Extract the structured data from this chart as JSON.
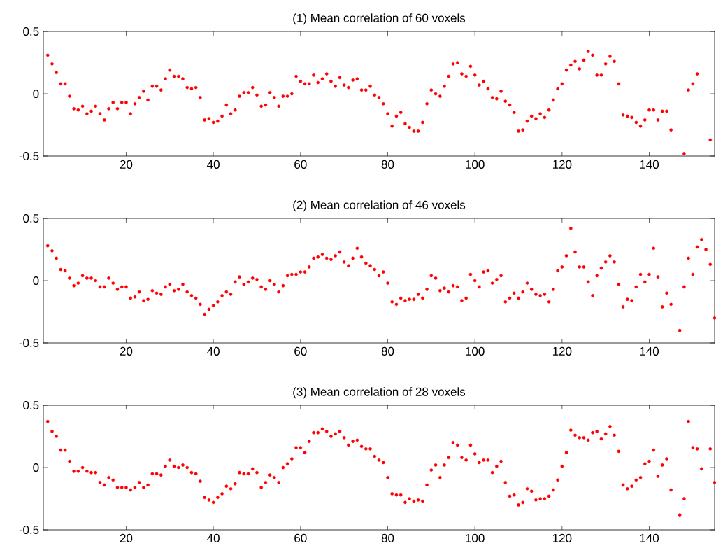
{
  "chart_data": [
    {
      "type": "scatter",
      "title": "(1) Mean correlation of 60 voxels",
      "grid": false,
      "xlim": [
        1,
        155
      ],
      "ylim": [
        -0.5,
        0.5
      ],
      "xticks": [
        20,
        40,
        60,
        80,
        100,
        120,
        140
      ],
      "yticks": [
        -0.5,
        0,
        0.5
      ],
      "x": [
        2,
        3,
        4,
        5,
        6,
        7,
        8,
        9,
        10,
        11,
        12,
        13,
        14,
        15,
        16,
        17,
        18,
        19,
        20,
        21,
        22,
        23,
        24,
        25,
        26,
        27,
        28,
        29,
        30,
        31,
        32,
        33,
        34,
        35,
        36,
        37,
        38,
        39,
        40,
        41,
        42,
        43,
        44,
        45,
        46,
        47,
        48,
        49,
        50,
        51,
        52,
        53,
        54,
        55,
        56,
        57,
        58,
        59,
        60,
        61,
        62,
        63,
        64,
        65,
        66,
        67,
        68,
        69,
        70,
        71,
        72,
        73,
        74,
        75,
        76,
        77,
        78,
        79,
        80,
        81,
        82,
        83,
        84,
        85,
        86,
        87,
        88,
        89,
        90,
        91,
        92,
        93,
        94,
        95,
        96,
        97,
        98,
        99,
        100,
        101,
        102,
        103,
        104,
        105,
        106,
        107,
        108,
        109,
        110,
        111,
        112,
        113,
        114,
        115,
        116,
        117,
        118,
        119,
        120,
        121,
        122,
        123,
        124,
        125,
        126,
        127,
        128,
        129,
        130,
        131,
        132,
        133,
        134,
        135,
        136,
        137,
        138,
        139,
        140,
        141,
        142,
        143,
        144,
        145,
        146,
        147,
        148,
        149,
        150,
        151,
        152,
        153,
        154
      ],
      "series": [
        {
          "color": "#ff0000",
          "values": [
            0.31,
            0.24,
            0.17,
            0.08,
            0.08,
            -0.02,
            -0.12,
            -0.13,
            -0.1,
            -0.16,
            -0.14,
            -0.1,
            -0.16,
            -0.21,
            -0.12,
            -0.07,
            -0.12,
            -0.07,
            -0.07,
            -0.16,
            -0.08,
            -0.03,
            0.02,
            -0.05,
            0.06,
            0.06,
            0.03,
            0.12,
            0.19,
            0.14,
            0.14,
            0.12,
            0.05,
            0.04,
            0.05,
            -0.03,
            -0.21,
            -0.2,
            -0.23,
            -0.22,
            -0.18,
            -0.09,
            -0.16,
            -0.13,
            -0.02,
            0.01,
            0.01,
            0.05,
            -0.01,
            -0.1,
            -0.09,
            0.01,
            -0.03,
            -0.1,
            -0.02,
            -0.02,
            0.0,
            0.14,
            0.1,
            0.08,
            0.08,
            0.15,
            0.09,
            0.12,
            0.16,
            0.1,
            0.06,
            0.13,
            0.07,
            0.05,
            0.11,
            0.12,
            0.03,
            0.03,
            0.06,
            -0.01,
            -0.03,
            -0.08,
            -0.16,
            -0.26,
            -0.18,
            -0.15,
            -0.24,
            -0.27,
            -0.3,
            -0.3,
            -0.23,
            -0.08,
            0.03,
            0.0,
            -0.02,
            0.06,
            0.14,
            0.24,
            0.25,
            0.16,
            0.14,
            0.22,
            0.15,
            0.07,
            0.1,
            0.04,
            -0.03,
            -0.04,
            0.02,
            -0.06,
            -0.09,
            -0.15,
            -0.3,
            -0.29,
            -0.22,
            -0.18,
            -0.2,
            -0.16,
            -0.19,
            -0.13,
            -0.05,
            0.04,
            0.08,
            0.19,
            0.23,
            0.26,
            0.2,
            0.27,
            0.34,
            0.31,
            0.15,
            0.15,
            0.24,
            0.3,
            0.26,
            0.08,
            -0.17,
            -0.18,
            -0.19,
            -0.23,
            -0.26,
            -0.21,
            -0.13,
            -0.13,
            -0.21,
            -0.14,
            -0.14,
            -0.29,
            null,
            null,
            -0.48,
            0.03,
            0.08,
            0.16,
            null,
            null,
            -0.37
          ]
        }
      ]
    },
    {
      "type": "scatter",
      "title": "(2) Mean correlation of 46 voxels",
      "grid": false,
      "xlim": [
        1,
        155
      ],
      "ylim": [
        -0.5,
        0.5
      ],
      "xticks": [
        20,
        40,
        60,
        80,
        100,
        120,
        140
      ],
      "yticks": [
        -0.5,
        0,
        0.5
      ],
      "x": [
        2,
        3,
        4,
        5,
        6,
        7,
        8,
        9,
        10,
        11,
        12,
        13,
        14,
        15,
        16,
        17,
        18,
        19,
        20,
        21,
        22,
        23,
        24,
        25,
        26,
        27,
        28,
        29,
        30,
        31,
        32,
        33,
        34,
        35,
        36,
        37,
        38,
        39,
        40,
        41,
        42,
        43,
        44,
        45,
        46,
        47,
        48,
        49,
        50,
        51,
        52,
        53,
        54,
        55,
        56,
        57,
        58,
        59,
        60,
        61,
        62,
        63,
        64,
        65,
        66,
        67,
        68,
        69,
        70,
        71,
        72,
        73,
        74,
        75,
        76,
        77,
        78,
        79,
        80,
        81,
        82,
        83,
        84,
        85,
        86,
        87,
        88,
        89,
        90,
        91,
        92,
        93,
        94,
        95,
        96,
        97,
        98,
        99,
        100,
        101,
        102,
        103,
        104,
        105,
        106,
        107,
        108,
        109,
        110,
        111,
        112,
        113,
        114,
        115,
        116,
        117,
        118,
        119,
        120,
        121,
        122,
        123,
        124,
        125,
        126,
        127,
        128,
        129,
        130,
        131,
        132,
        133,
        134,
        135,
        136,
        137,
        138,
        139,
        140,
        141,
        142,
        143,
        144,
        145,
        146,
        147,
        148,
        149,
        150,
        151,
        152,
        153,
        154,
        155
      ],
      "series": [
        {
          "color": "#ff0000",
          "values": [
            0.28,
            0.24,
            0.18,
            0.09,
            0.08,
            0.02,
            -0.04,
            -0.02,
            0.04,
            0.02,
            0.02,
            0.0,
            -0.05,
            -0.05,
            0.02,
            -0.02,
            -0.07,
            -0.05,
            -0.05,
            -0.14,
            -0.13,
            -0.09,
            -0.16,
            -0.15,
            -0.08,
            -0.1,
            -0.11,
            -0.05,
            -0.03,
            -0.08,
            -0.07,
            -0.03,
            -0.09,
            -0.12,
            -0.14,
            -0.19,
            -0.27,
            -0.23,
            -0.2,
            -0.17,
            -0.12,
            -0.09,
            -0.11,
            -0.01,
            0.03,
            -0.03,
            -0.01,
            0.02,
            0.01,
            -0.05,
            -0.07,
            0.0,
            -0.03,
            -0.09,
            -0.04,
            0.04,
            0.05,
            0.05,
            0.07,
            0.07,
            0.11,
            0.18,
            0.19,
            0.21,
            0.18,
            0.17,
            0.2,
            0.23,
            0.15,
            0.12,
            0.18,
            0.26,
            0.19,
            0.14,
            0.12,
            0.09,
            0.04,
            0.07,
            -0.02,
            -0.17,
            -0.19,
            -0.14,
            -0.16,
            -0.15,
            -0.15,
            -0.11,
            -0.14,
            -0.07,
            0.04,
            0.02,
            -0.08,
            -0.06,
            -0.09,
            -0.04,
            -0.05,
            -0.16,
            -0.14,
            0.05,
            0.0,
            -0.05,
            0.07,
            0.08,
            -0.02,
            0.01,
            0.04,
            -0.17,
            -0.14,
            -0.1,
            -0.14,
            -0.09,
            -0.02,
            -0.07,
            -0.11,
            -0.12,
            -0.11,
            -0.17,
            -0.07,
            0.08,
            0.11,
            0.2,
            0.42,
            0.23,
            0.11,
            0.11,
            -0.01,
            -0.12,
            0.04,
            0.1,
            0.15,
            0.2,
            0.15,
            -0.03,
            -0.21,
            -0.15,
            -0.16,
            -0.05,
            0.05,
            -0.01,
            0.05,
            0.26,
            0.03,
            -0.21,
            -0.1,
            -0.19,
            null,
            -0.4,
            -0.05,
            0.18,
            0.05,
            0.27,
            0.33,
            0.25,
            0.13,
            -0.3
          ]
        }
      ]
    },
    {
      "type": "scatter",
      "title": "(3) Mean correlation of 28 voxels",
      "grid": false,
      "xlim": [
        1,
        155
      ],
      "ylim": [
        -0.5,
        0.5
      ],
      "xticks": [
        20,
        40,
        60,
        80,
        100,
        120,
        140
      ],
      "yticks": [
        -0.5,
        0,
        0.5
      ],
      "x": [
        2,
        3,
        4,
        5,
        6,
        7,
        8,
        9,
        10,
        11,
        12,
        13,
        14,
        15,
        16,
        17,
        18,
        19,
        20,
        21,
        22,
        23,
        24,
        25,
        26,
        27,
        28,
        29,
        30,
        31,
        32,
        33,
        34,
        35,
        36,
        37,
        38,
        39,
        40,
        41,
        42,
        43,
        44,
        45,
        46,
        47,
        48,
        49,
        50,
        51,
        52,
        53,
        54,
        55,
        56,
        57,
        58,
        59,
        60,
        61,
        62,
        63,
        64,
        65,
        66,
        67,
        68,
        69,
        70,
        71,
        72,
        73,
        74,
        75,
        76,
        77,
        78,
        79,
        80,
        81,
        82,
        83,
        84,
        85,
        86,
        87,
        88,
        89,
        90,
        91,
        92,
        93,
        94,
        95,
        96,
        97,
        98,
        99,
        100,
        101,
        102,
        103,
        104,
        105,
        106,
        107,
        108,
        109,
        110,
        111,
        112,
        113,
        114,
        115,
        116,
        117,
        118,
        119,
        120,
        121,
        122,
        123,
        124,
        125,
        126,
        127,
        128,
        129,
        130,
        131,
        132,
        133,
        134,
        135,
        136,
        137,
        138,
        139,
        140,
        141,
        142,
        143,
        144,
        145,
        146,
        147,
        148,
        149,
        150,
        151,
        152,
        153,
        154,
        155
      ],
      "series": [
        {
          "color": "#ff0000",
          "values": [
            0.37,
            0.29,
            0.25,
            0.14,
            0.14,
            0.05,
            -0.03,
            -0.03,
            0.0,
            -0.03,
            -0.04,
            -0.04,
            -0.12,
            -0.14,
            -0.08,
            -0.1,
            -0.16,
            -0.16,
            -0.16,
            -0.18,
            -0.16,
            -0.12,
            -0.16,
            -0.14,
            -0.05,
            -0.05,
            -0.06,
            0.01,
            0.06,
            0.01,
            0.0,
            0.02,
            0.0,
            -0.04,
            -0.05,
            -0.11,
            -0.24,
            -0.26,
            -0.28,
            -0.24,
            -0.21,
            -0.15,
            -0.17,
            -0.13,
            -0.04,
            -0.05,
            -0.05,
            -0.01,
            -0.04,
            -0.16,
            -0.12,
            -0.06,
            -0.08,
            -0.12,
            0.0,
            0.03,
            0.07,
            0.16,
            0.16,
            0.12,
            0.21,
            0.28,
            0.28,
            0.31,
            0.29,
            0.25,
            0.27,
            0.29,
            0.24,
            0.18,
            0.21,
            0.22,
            0.17,
            0.15,
            0.15,
            0.09,
            0.06,
            0.04,
            -0.08,
            -0.21,
            -0.22,
            -0.22,
            -0.28,
            -0.25,
            -0.27,
            -0.26,
            -0.27,
            -0.14,
            -0.02,
            0.02,
            -0.08,
            0.02,
            0.08,
            0.2,
            0.18,
            0.08,
            0.06,
            0.18,
            0.11,
            0.04,
            0.06,
            0.06,
            -0.04,
            0.01,
            0.05,
            -0.12,
            -0.23,
            -0.22,
            -0.3,
            -0.28,
            -0.17,
            -0.19,
            -0.26,
            -0.25,
            -0.25,
            -0.23,
            -0.18,
            -0.1,
            0.01,
            0.12,
            0.3,
            0.26,
            0.24,
            0.24,
            0.22,
            0.28,
            0.29,
            0.23,
            0.27,
            0.33,
            0.26,
            0.13,
            -0.14,
            -0.17,
            -0.15,
            -0.1,
            -0.08,
            0.03,
            0.05,
            0.14,
            -0.07,
            0.02,
            0.07,
            -0.18,
            null,
            -0.38,
            -0.25,
            0.37,
            0.16,
            0.15,
            -0.01,
            null,
            0.15,
            -0.12
          ]
        }
      ]
    }
  ]
}
